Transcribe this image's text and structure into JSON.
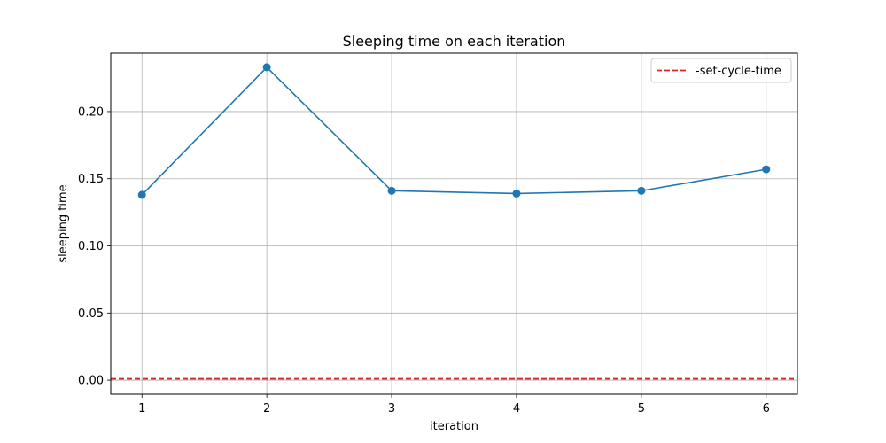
{
  "chart_data": {
    "type": "line",
    "title": "Sleeping time on each iteration",
    "xlabel": "iteration",
    "ylabel": "sleeping time",
    "xlim": [
      0.75,
      6.25
    ],
    "ylim": [
      -0.0105,
      0.2435
    ],
    "x": [
      1,
      2,
      3,
      4,
      5,
      6
    ],
    "xticks": [
      "1",
      "2",
      "3",
      "4",
      "5",
      "6"
    ],
    "yticks": [
      0.0,
      0.05,
      0.1,
      0.15,
      0.2
    ],
    "ytick_labels": [
      "0.00",
      "0.05",
      "0.10",
      "0.15",
      "0.20"
    ],
    "grid": true,
    "legend": {
      "placement": "top-right"
    },
    "series": [
      {
        "name": "",
        "values": [
          0.138,
          0.233,
          0.141,
          0.139,
          0.141,
          0.157
        ],
        "color": "#1f77b4",
        "marker": "circle"
      }
    ],
    "reference_lines": [
      {
        "name": "-set-cycle-time",
        "y": 0.001,
        "color": "#d62728",
        "style": "dashed"
      }
    ]
  }
}
